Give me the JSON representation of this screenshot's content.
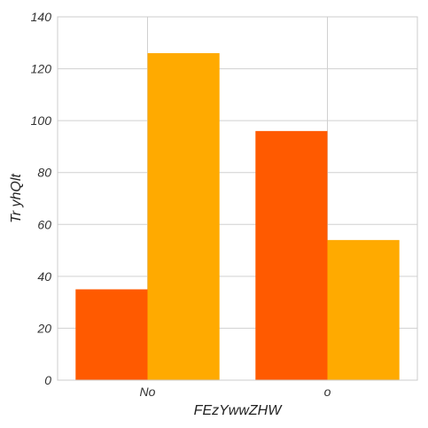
{
  "chart_data": {
    "type": "bar",
    "title": "",
    "xlabel": "FEzYwwZHW",
    "ylabel": "Tr yhQlt",
    "categories": [
      "No",
      "o"
    ],
    "series": [
      {
        "values": [
          35,
          96
        ],
        "color": "#ff5a00"
      },
      {
        "values": [
          126,
          54
        ],
        "color": "#ffaa00"
      }
    ],
    "ylim": [
      0,
      140
    ],
    "yticks": [
      0,
      20,
      40,
      60,
      80,
      100,
      120,
      140
    ],
    "grid": true,
    "legend": "none"
  }
}
